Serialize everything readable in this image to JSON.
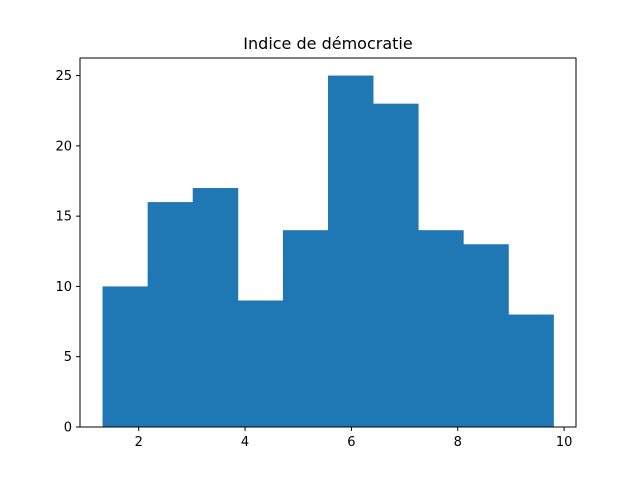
{
  "chart_data": {
    "type": "bar",
    "title": "Indice de démocratie",
    "xlabel": "",
    "ylabel": "",
    "bin_edges": [
      1.32,
      2.168,
      3.016,
      3.864,
      4.712,
      5.56,
      6.408,
      7.256,
      8.104,
      8.952,
      9.8
    ],
    "values": [
      10,
      16,
      17,
      9,
      14,
      25,
      23,
      14,
      13,
      8
    ],
    "xlim": [
      0.896,
      10.224
    ],
    "ylim": [
      0,
      26.25
    ],
    "xticks": [
      2,
      4,
      6,
      8,
      10
    ],
    "yticks": [
      0,
      5,
      10,
      15,
      20,
      25
    ],
    "bar_color": "#1f77b4",
    "grid": false,
    "legend": "none"
  }
}
